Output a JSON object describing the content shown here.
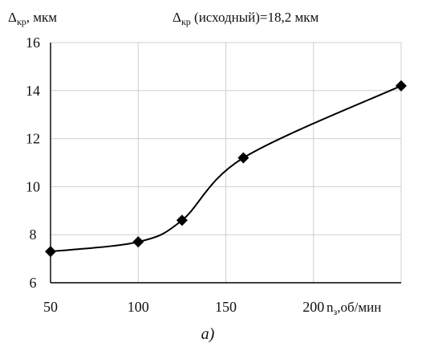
{
  "chart_data": {
    "type": "line",
    "title": "Δкр (исходный)=18,2 мкм",
    "title_main": "Δ",
    "title_sub": "кр",
    "title_rest": " (исходный)=18,2 мкм",
    "ylabel_main": "Δ",
    "ylabel_sub": "кр",
    "ylabel_rest": ", мкм",
    "xlabel_main": "n",
    "xlabel_sub": "з",
    "xlabel_rest": ",об/мин",
    "caption": "а)",
    "xlim": [
      50,
      250
    ],
    "ylim": [
      6,
      16
    ],
    "x_ticks": [
      50,
      100,
      150,
      200
    ],
    "x_tick_labels": [
      "50",
      "100",
      "150",
      "200"
    ],
    "y_ticks": [
      6,
      8,
      10,
      12,
      14,
      16
    ],
    "y_tick_labels": [
      "6",
      "8",
      "10",
      "12",
      "14",
      "16"
    ],
    "grid": "vertical-and-horizontal",
    "series": [
      {
        "x": [
          50,
          100,
          125,
          160,
          250
        ],
        "values": [
          7.3,
          7.7,
          8.6,
          11.2,
          14.2
        ],
        "marker": "diamond",
        "color": "#000000"
      }
    ]
  }
}
